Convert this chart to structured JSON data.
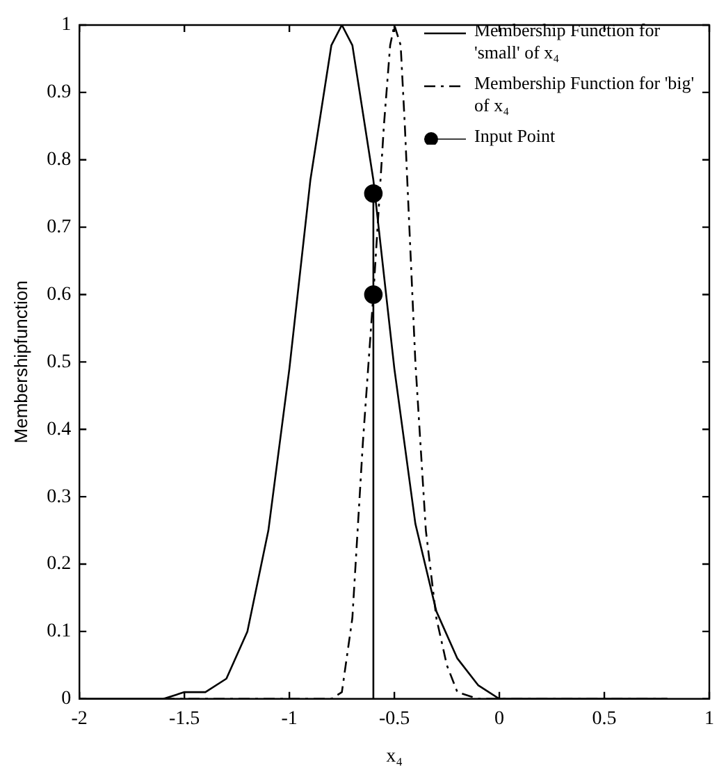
{
  "chart_data": {
    "type": "line",
    "xlabel": "x₄",
    "ylabel": "Membershipfunction",
    "xlim": [
      -2,
      1
    ],
    "ylim": [
      0,
      1
    ],
    "xticks": [
      -2,
      -1.5,
      -1,
      -0.5,
      0,
      0.5,
      1
    ],
    "yticks": [
      0,
      0.1,
      0.2,
      0.3,
      0.4,
      0.5,
      0.6,
      0.7,
      0.8,
      0.9,
      1
    ],
    "grid": false,
    "legend": "top right",
    "marker": "none",
    "series": [
      {
        "name": "Membership Function for 'small' of x₄",
        "color": "#000000",
        "line_style": "solid",
        "x": [
          -2,
          -1.6,
          -1.5,
          -1.4,
          -1.3,
          -1.2,
          -1.1,
          -1,
          -0.9,
          -0.8,
          -0.75,
          -0.7,
          -0.6,
          -0.5,
          -0.4,
          -0.3,
          -0.2,
          -0.1,
          0,
          0.2,
          0.5,
          0.8
        ],
        "values": [
          0,
          0,
          0.01,
          0.01,
          0.03,
          0.1,
          0.25,
          0.49,
          0.77,
          0.97,
          1,
          0.97,
          0.77,
          0.49,
          0.26,
          0.13,
          0.06,
          0.02,
          0,
          0,
          0,
          0
        ]
      },
      {
        "name": "Membership Function for 'big' of x₄",
        "color": "#000000",
        "line_style": "dashed",
        "x": [
          -1.6,
          -1,
          -0.8,
          -0.75,
          -0.7,
          -0.65,
          -0.6,
          -0.55,
          -0.52,
          -0.5,
          -0.47,
          -0.45,
          -0.4,
          -0.35,
          -0.3,
          -0.25,
          -0.2,
          -0.1,
          0,
          0.8
        ],
        "values": [
          0,
          0,
          0,
          0.01,
          0.12,
          0.38,
          0.6,
          0.85,
          0.97,
          1,
          0.97,
          0.85,
          0.5,
          0.25,
          0.12,
          0.05,
          0.01,
          0,
          0,
          0
        ]
      },
      {
        "type": "line",
        "color": "#000000",
        "line_style": "solid",
        "marker": "none",
        "x": [
          -0.6,
          -0.6
        ],
        "values": [
          0,
          0.75
        ]
      },
      {
        "type": "scatter",
        "name": "Input Point",
        "color": "#000000",
        "marker": "circle",
        "x": [
          -0.6,
          -0.6
        ],
        "values": [
          0.75,
          0.6
        ]
      }
    ]
  }
}
